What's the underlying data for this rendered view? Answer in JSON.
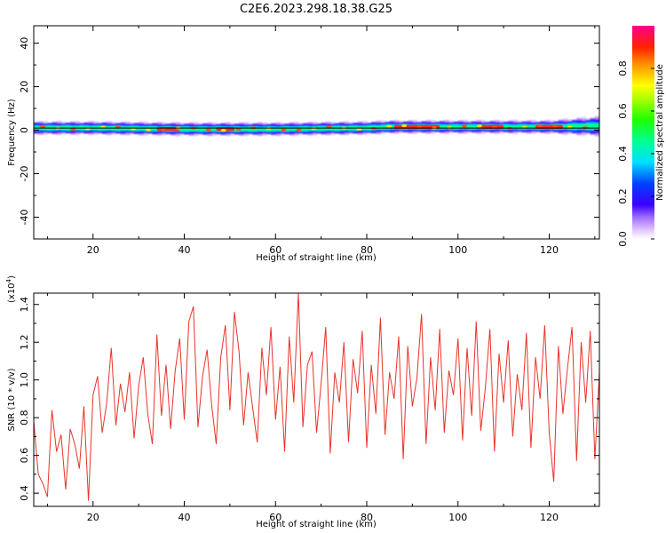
{
  "title": "C2E6.2023.298.18.38.G25",
  "chart_data": [
    {
      "type": "heatmap",
      "xlabel": "Height of straight line (km)",
      "ylabel": "Frequency (Hz)",
      "xlim": [
        7,
        131
      ],
      "ylim": [
        -50,
        48
      ],
      "x_ticks": [
        20,
        40,
        60,
        80,
        100,
        120
      ],
      "y_ticks": [
        40,
        20,
        0,
        -20,
        -40
      ],
      "colorbar": {
        "label": "Normalized spectral amplitude",
        "range": [
          0,
          1
        ],
        "ticks": [
          0.0,
          0.2,
          0.4,
          0.6,
          0.8
        ],
        "tick_labels": [
          "0.0",
          "0.2",
          "0.4",
          "0.6",
          "0.8"
        ]
      },
      "band": {
        "x": [
          7,
          20,
          40,
          60,
          80,
          85,
          100,
          120,
          131
        ],
        "center_hz": [
          1.0,
          1.0,
          0.5,
          0.5,
          1.0,
          1.5,
          1.5,
          1.5,
          1.8
        ],
        "half_width_hz": [
          3.0,
          3.0,
          3.0,
          3.0,
          3.0,
          3.0,
          3.0,
          3.0,
          4.5
        ]
      },
      "hot_segments_km": [
        [
          34,
          39
        ],
        [
          47,
          51
        ],
        [
          86,
          96
        ],
        [
          105,
          110
        ],
        [
          117,
          123
        ]
      ],
      "reference_line_hz": 1.0
    },
    {
      "type": "line",
      "xlabel": "Height of straight line (km)",
      "ylabel": "SNR (10 * v/v)",
      "y_multiplier": "(x10",
      "y_multiplier_exp": "4",
      "y_multiplier_close": ")",
      "xlim": [
        7,
        131
      ],
      "ylim": [
        0.33,
        1.46
      ],
      "x_ticks": [
        20,
        40,
        60,
        80,
        100,
        120
      ],
      "y_ticks": [
        0.4,
        0.6,
        0.8,
        1.0,
        1.2,
        1.4
      ],
      "y_tick_labels": [
        "0.4",
        "0.6",
        "0.8",
        "1.0",
        "1.2",
        "1.4"
      ],
      "color": "#e8332a",
      "series": [
        {
          "x": [
            7,
            8,
            9,
            10,
            11,
            12,
            13,
            14,
            15,
            16,
            17,
            18,
            19,
            20,
            21,
            22,
            23,
            24,
            25,
            26,
            27,
            28,
            29,
            30,
            31,
            32,
            33,
            34,
            35,
            36,
            37,
            38,
            39,
            40,
            41,
            42,
            43,
            44,
            45,
            46,
            47,
            48,
            49,
            50,
            51,
            52,
            53,
            54,
            55,
            56,
            57,
            58,
            59,
            60,
            61,
            62,
            63,
            64,
            65,
            66,
            67,
            68,
            69,
            70,
            71,
            72,
            73,
            74,
            75,
            76,
            77,
            78,
            79,
            80,
            81,
            82,
            83,
            84,
            85,
            86,
            87,
            88,
            89,
            90,
            91,
            92,
            93,
            94,
            95,
            96,
            97,
            98,
            99,
            100,
            101,
            102,
            103,
            104,
            105,
            106,
            107,
            108,
            109,
            110,
            111,
            112,
            113,
            114,
            115,
            116,
            117,
            118,
            119,
            120,
            121,
            122,
            123,
            124,
            125,
            126,
            127,
            128,
            129,
            130,
            131
          ],
          "values": [
            0.78,
            0.5,
            0.45,
            0.38,
            0.84,
            0.62,
            0.71,
            0.42,
            0.74,
            0.66,
            0.53,
            0.86,
            0.36,
            0.92,
            1.02,
            0.72,
            0.88,
            1.17,
            0.76,
            0.98,
            0.83,
            1.04,
            0.69,
            0.97,
            1.12,
            0.82,
            0.66,
            1.24,
            0.81,
            1.08,
            0.74,
            1.05,
            1.22,
            0.79,
            1.31,
            1.39,
            0.75,
            1.02,
            1.16,
            0.87,
            0.66,
            1.12,
            1.29,
            0.84,
            1.36,
            1.15,
            0.76,
            1.04,
            0.85,
            0.67,
            1.17,
            0.92,
            1.28,
            0.79,
            1.07,
            0.62,
            1.23,
            0.88,
            1.46,
            0.75,
            1.08,
            1.15,
            0.72,
            0.98,
            1.28,
            0.61,
            1.04,
            0.88,
            1.2,
            0.67,
            1.11,
            0.93,
            1.26,
            0.64,
            1.08,
            0.82,
            1.33,
            0.71,
            1.04,
            0.9,
            1.23,
            0.58,
            1.18,
            0.86,
            1.01,
            1.35,
            0.66,
            1.12,
            0.84,
            1.27,
            0.72,
            1.05,
            0.92,
            1.22,
            0.68,
            1.17,
            0.81,
            1.31,
            0.73,
            0.96,
            1.27,
            0.62,
            1.14,
            0.88,
            1.21,
            0.7,
            1.03,
            0.84,
            1.25,
            0.64,
            1.12,
            0.9,
            1.29,
            0.72,
            0.46,
            1.18,
            0.82,
            1.06,
            1.28,
            0.57,
            1.2,
            0.88,
            1.26,
            0.58,
            1.04
          ]
        }
      ]
    }
  ]
}
